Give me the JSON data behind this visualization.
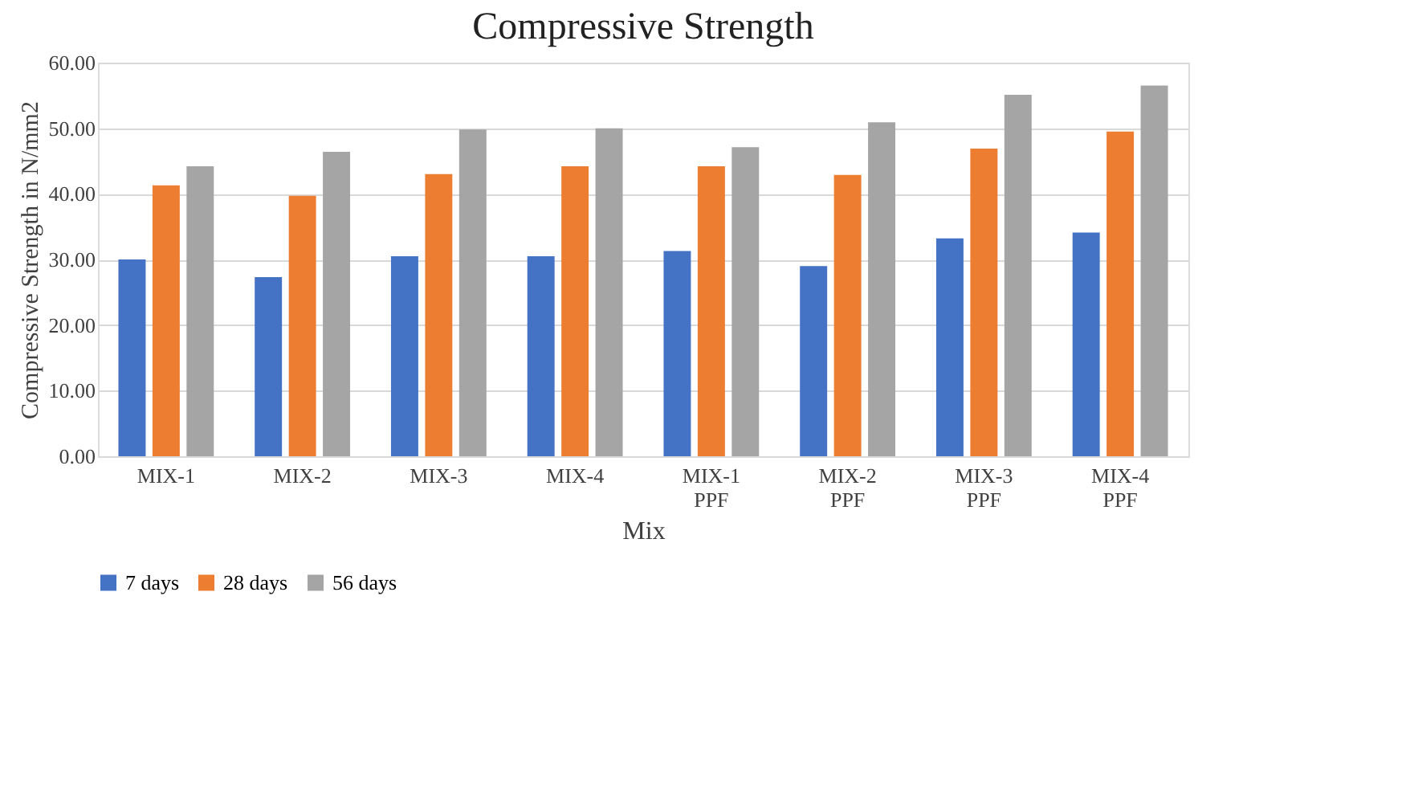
{
  "chart_data": {
    "type": "bar",
    "title": "Compressive  Strength",
    "xlabel": "Mix",
    "ylabel": "Compressive Strength in N/mm2",
    "categories": [
      "MIX-1",
      "MIX-2",
      "MIX-3",
      "MIX-4",
      "MIX-1\nPPF",
      "MIX-2\nPPF",
      "MIX-3\nPPF",
      "MIX-4\nPPF"
    ],
    "series": [
      {
        "name": "7 days",
        "color": "#4472c4",
        "values": [
          30.0,
          27.3,
          30.5,
          30.5,
          31.3,
          29.0,
          33.2,
          34.1
        ]
      },
      {
        "name": "28 days",
        "color": "#ed7d31",
        "values": [
          41.3,
          39.7,
          43.0,
          44.2,
          44.2,
          42.9,
          46.9,
          49.5
        ]
      },
      {
        "name": "56 days",
        "color": "#a5a5a5",
        "values": [
          44.2,
          46.4,
          49.8,
          50.0,
          47.1,
          50.9,
          55.1,
          56.5
        ]
      }
    ],
    "ylim": [
      0,
      60
    ],
    "yticks": [
      {
        "value": 0,
        "label": "0.00"
      },
      {
        "value": 10,
        "label": "10.00"
      },
      {
        "value": 20,
        "label": "20.00"
      },
      {
        "value": 30,
        "label": "30.00"
      },
      {
        "value": 40,
        "label": "40.00"
      },
      {
        "value": 50,
        "label": "50.00"
      },
      {
        "value": 60,
        "label": "60.00"
      }
    ],
    "grid": "y",
    "legend": "bottom"
  }
}
